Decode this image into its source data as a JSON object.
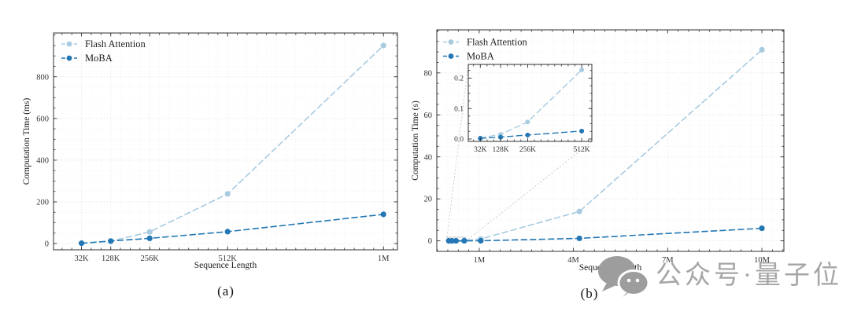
{
  "page": {
    "background": "#ffffff"
  },
  "colors": {
    "flash_attention": "#a8cbe0",
    "moba": "#2277b4",
    "grid_major": "#dedede",
    "grid_minor": "#ececec",
    "spine": "#2f2f2f",
    "tick_text": "#333333",
    "label_text": "#1d1d1d",
    "connector": "#c0c0c0",
    "watermark": "#a6a6a6"
  },
  "captions": {
    "a": "(a)",
    "b": "(b)"
  },
  "watermark": {
    "icon": "wechat-icon",
    "text": "公众号·量子位"
  },
  "chart_data": [
    {
      "id": "a",
      "type": "line",
      "title": "",
      "xlabel": "Sequence Length",
      "ylabel": "Computation Time (ms)",
      "xtick_labels": [
        "32K",
        "128K",
        "256K",
        "512K",
        "1M"
      ],
      "x_tokens_K": [
        32,
        128,
        256,
        512,
        1024
      ],
      "yticks": [
        0,
        200,
        400,
        600,
        800
      ],
      "ylim": [
        -30,
        1010
      ],
      "xlim_K": [
        -60,
        1070
      ],
      "grid": true,
      "legend_position": "upper left",
      "legend_entries": [
        "Flash Attention",
        "MoBA"
      ],
      "series": [
        {
          "name": "Flash Attention",
          "color_key": "flash_attention",
          "linestyle": "dashed",
          "marker": "circle",
          "values": [
            1.5,
            11,
            56,
            238,
            950
          ]
        },
        {
          "name": "MoBA",
          "color_key": "moba",
          "linestyle": "dashed",
          "marker": "circle",
          "values": [
            1.5,
            12,
            25,
            57,
            140
          ]
        }
      ]
    },
    {
      "id": "b",
      "type": "line",
      "title": "",
      "xlabel": "Sequence Length",
      "ylabel": "Computation Time (s)",
      "xtick_labels": [
        "1M",
        "4M",
        "7M",
        "10M"
      ],
      "xticks_M": [
        1,
        4,
        7,
        10
      ],
      "x_tokens_M": [
        0.033,
        0.131,
        0.262,
        0.524,
        1.05,
        4.19,
        10.0
      ],
      "point_seq_lengths": [
        "32K",
        "128K",
        "256K",
        "512K",
        "1M",
        "4M",
        "10M"
      ],
      "yticks": [
        0,
        20,
        40,
        60,
        80
      ],
      "ylim": [
        -5,
        100.5
      ],
      "xlim_M": [
        -0.35,
        10.7
      ],
      "grid": true,
      "legend_position": "upper left",
      "legend_entries": [
        "Flash Attention",
        "MoBA"
      ],
      "series": [
        {
          "name": "Flash Attention",
          "color_key": "flash_attention",
          "linestyle": "dashed",
          "marker": "circle",
          "values": [
            0.003,
            0.015,
            0.056,
            0.227,
            0.92,
            14,
            91
          ]
        },
        {
          "name": "MoBA",
          "color_key": "moba",
          "linestyle": "dashed",
          "marker": "circle",
          "values": [
            0.002,
            0.006,
            0.013,
            0.026,
            0.06,
            1.2,
            6.0
          ]
        }
      ],
      "inset": {
        "type": "line",
        "xtick_labels": [
          "32K",
          "128K",
          "256K",
          "512K"
        ],
        "x_tokens_K": [
          32,
          128,
          256,
          512
        ],
        "yticks": [
          0.0,
          0.1,
          0.2
        ],
        "ylim": [
          -0.008,
          0.245
        ],
        "xlim_K": [
          -25,
          560
        ],
        "grid": false,
        "series": [
          {
            "name": "Flash Attention",
            "color_key": "flash_attention",
            "values": [
              0.003,
              0.015,
              0.056,
              0.227
            ]
          },
          {
            "name": "MoBA",
            "color_key": "moba",
            "values": [
              0.002,
              0.006,
              0.013,
              0.026
            ]
          }
        ]
      }
    }
  ]
}
